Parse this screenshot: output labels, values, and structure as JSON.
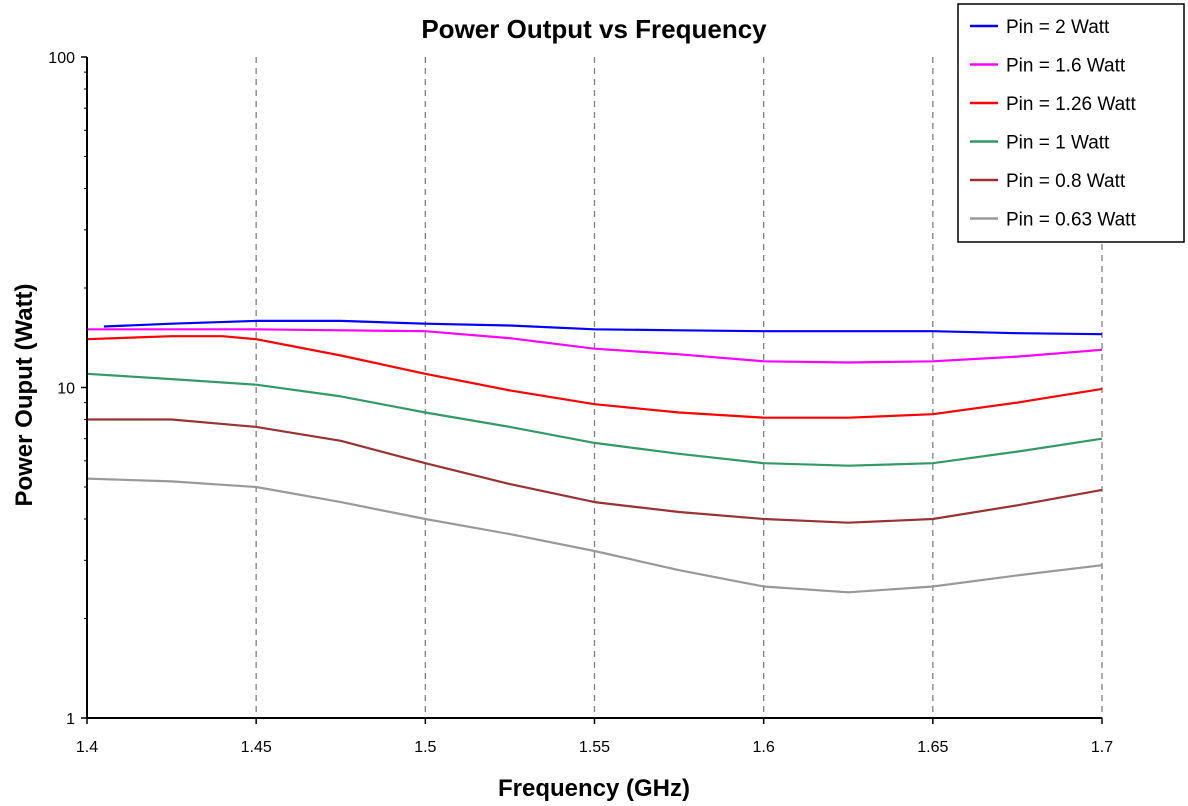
{
  "chart_data": {
    "type": "line",
    "title": "Power Output vs Frequency",
    "xlabel": "Frequency (GHz)",
    "ylabel": "Power Ouput (Watt)",
    "xlim": [
      1.4,
      1.7
    ],
    "ylim": [
      1,
      100
    ],
    "yscale": "log",
    "x_ticks": [
      "1.4",
      "1.45",
      "1.5",
      "1.55",
      "1.6",
      "1.65",
      "1.7"
    ],
    "y_ticks": [
      "1",
      "10",
      "100"
    ],
    "vertical_grid": "dashed",
    "legend_position": "top-right",
    "series": [
      {
        "name": "Pin = 2 Watt",
        "color": "#0000ff",
        "x": [
          1.405,
          1.425,
          1.45,
          1.475,
          1.5,
          1.525,
          1.55,
          1.575,
          1.6,
          1.625,
          1.65,
          1.675,
          1.7
        ],
        "y": [
          15.3,
          15.6,
          15.9,
          15.9,
          15.6,
          15.4,
          15.0,
          14.9,
          14.8,
          14.8,
          14.8,
          14.6,
          14.5
        ]
      },
      {
        "name": "Pin = 1.6 Watt",
        "color": "#ff00ff",
        "x": [
          1.4,
          1.425,
          1.45,
          1.475,
          1.5,
          1.525,
          1.55,
          1.575,
          1.6,
          1.625,
          1.65,
          1.675,
          1.7
        ],
        "y": [
          15.0,
          15.0,
          15.0,
          14.9,
          14.8,
          14.1,
          13.1,
          12.6,
          12.0,
          11.9,
          12.0,
          12.4,
          13.0
        ]
      },
      {
        "name": "Pin = 1.26 Watt",
        "color": "#ff0000",
        "x": [
          1.4,
          1.425,
          1.44,
          1.45,
          1.475,
          1.5,
          1.525,
          1.55,
          1.575,
          1.6,
          1.625,
          1.65,
          1.675,
          1.7
        ],
        "y": [
          14.0,
          14.3,
          14.3,
          14.0,
          12.5,
          11.0,
          9.8,
          8.9,
          8.4,
          8.1,
          8.1,
          8.3,
          9.0,
          9.9
        ]
      },
      {
        "name": "Pin = 1 Watt",
        "color": "#339966",
        "x": [
          1.4,
          1.425,
          1.45,
          1.475,
          1.5,
          1.525,
          1.55,
          1.575,
          1.6,
          1.625,
          1.65,
          1.675,
          1.7
        ],
        "y": [
          11.0,
          10.6,
          10.2,
          9.4,
          8.4,
          7.6,
          6.8,
          6.3,
          5.9,
          5.8,
          5.9,
          6.4,
          7.0
        ]
      },
      {
        "name": "Pin = 0.8 Watt",
        "color": "#993333",
        "x": [
          1.4,
          1.425,
          1.45,
          1.475,
          1.5,
          1.525,
          1.55,
          1.575,
          1.6,
          1.625,
          1.65,
          1.675,
          1.7
        ],
        "y": [
          8.0,
          8.0,
          7.6,
          6.9,
          5.9,
          5.1,
          4.5,
          4.2,
          4.0,
          3.9,
          4.0,
          4.4,
          4.9
        ]
      },
      {
        "name": "Pin = 0.63 Watt",
        "color": "#999999",
        "x": [
          1.4,
          1.425,
          1.45,
          1.475,
          1.5,
          1.525,
          1.55,
          1.575,
          1.6,
          1.625,
          1.65,
          1.675,
          1.7
        ],
        "y": [
          5.3,
          5.2,
          5.0,
          4.5,
          4.0,
          3.6,
          3.2,
          2.8,
          2.5,
          2.4,
          2.5,
          2.7,
          2.9
        ]
      }
    ]
  }
}
